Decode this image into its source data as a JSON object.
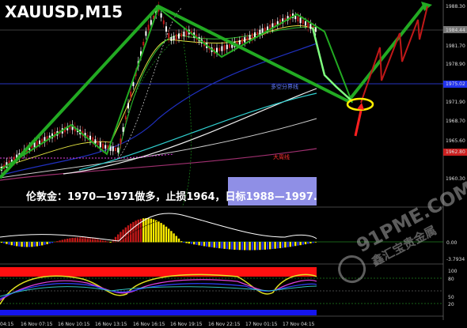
{
  "header": {
    "symbol": "XAUUSD,M15"
  },
  "price_axis": [
    "1988.30",
    "1984.44",
    "1981.70",
    "1978.90",
    "1975.02",
    "1971.90",
    "1968.70",
    "1965.60",
    "1962.80",
    "1960.30"
  ],
  "annotations": {
    "boundary": "多空分界线",
    "major_trend": "大周线",
    "strategy": "伦敦金：1970—1971做多，止损1964，日标1988—1997."
  },
  "indicator_axis": [
    "0.00",
    "-3.7934"
  ],
  "stochastic_axis": [
    "100",
    "80",
    "50",
    "20"
  ],
  "time_axis": [
    "04:15",
    "16 Nov 07:15",
    "16 Nov 10:15",
    "16 Nov 13:15",
    "16 Nov 16:15",
    "16 Nov 19:15",
    "16 Nov 22:15",
    "17 Nov 01:15",
    "17 Nov 04:15"
  ],
  "watermark": {
    "site": "91PME.COM",
    "brand": "鑫汇宝贵金属"
  }
}
